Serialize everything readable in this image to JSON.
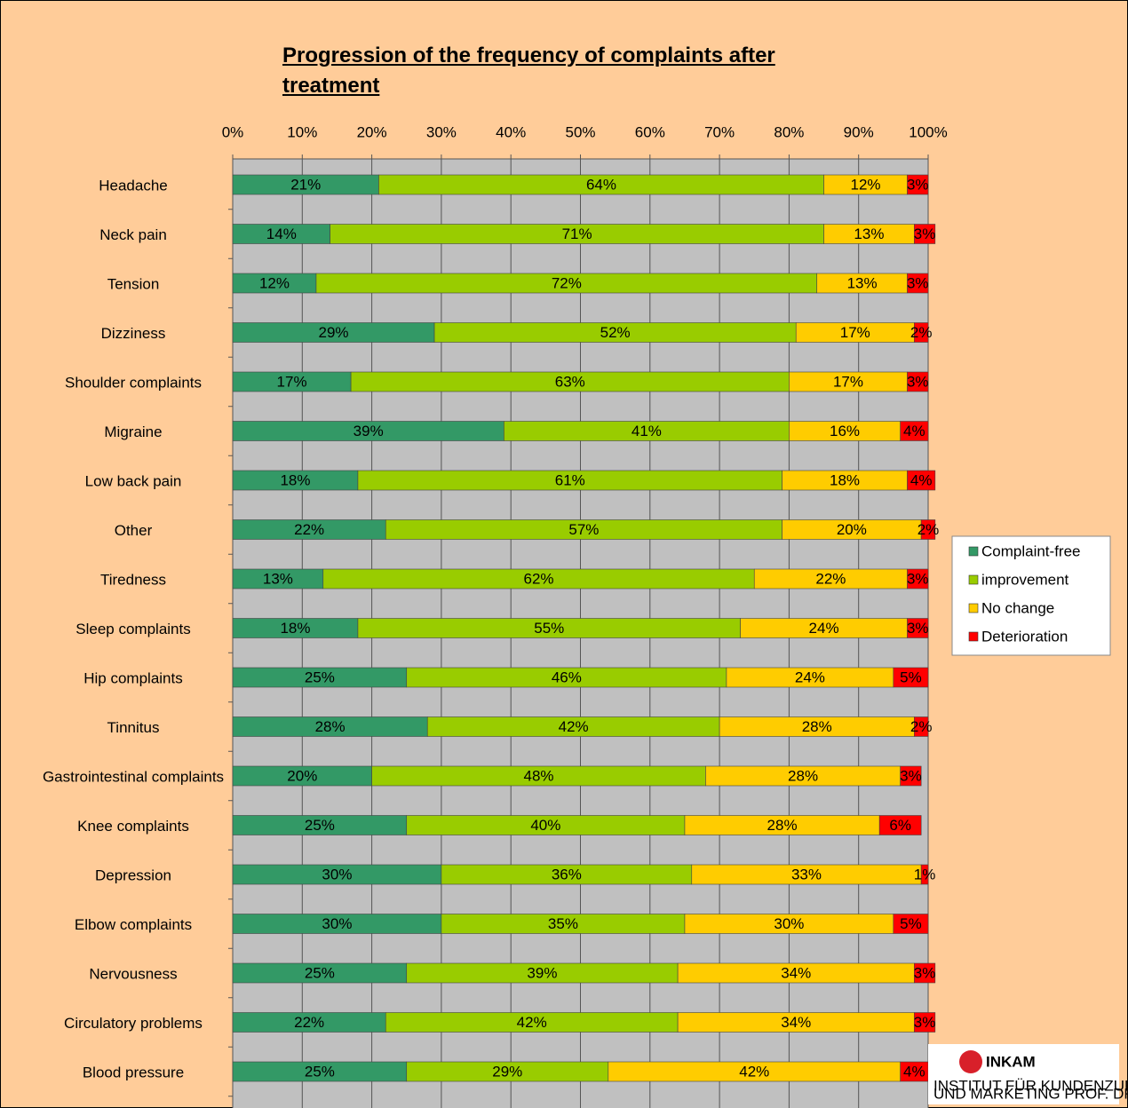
{
  "chart_data": {
    "type": "stacked_barh",
    "title": "Progression of the frequency of complaints after treatment",
    "categories": [
      "Headache",
      "Neck pain",
      "Tension",
      "Dizziness",
      "Shoulder complaints",
      "Migraine",
      "Low back pain",
      "Other",
      "Tiredness",
      "Sleep complaints",
      "Hip complaints",
      "Tinnitus",
      "Gastrointestinal complaints",
      "Knee complaints",
      "Depression",
      "Elbow complaints",
      "Nervousness",
      "Circulatory problems",
      "Blood pressure"
    ],
    "series": [
      {
        "name": "Complaint-free",
        "color": "#339966",
        "values": [
          21,
          14,
          12,
          29,
          17,
          39,
          18,
          22,
          13,
          18,
          25,
          28,
          20,
          25,
          30,
          30,
          25,
          22,
          25
        ],
        "value_labels": [
          "21%",
          "14%",
          "12%",
          "29%",
          "17%",
          "39%",
          "18%",
          "22%",
          "13%",
          "18%",
          "25%",
          "28%",
          "20%",
          "25%",
          "30%",
          "30%",
          "25%",
          "22%",
          "25%"
        ]
      },
      {
        "name": "improvement",
        "color": "#99cc00",
        "values": [
          64,
          71,
          72,
          52,
          63,
          41,
          61,
          57,
          62,
          55,
          46,
          42,
          48,
          40,
          36,
          35,
          39,
          42,
          29
        ],
        "value_labels": [
          "64%",
          "71%",
          "72%",
          "52%",
          "63%",
          "41%",
          "61%",
          "57%",
          "62%",
          "55%",
          "46%",
          "42%",
          "48%",
          "40%",
          "36%",
          "35%",
          "39%",
          "42%",
          "29%"
        ]
      },
      {
        "name": "No change",
        "color": "#ffcc00",
        "values": [
          12,
          13,
          13,
          17,
          17,
          16,
          18,
          20,
          22,
          24,
          24,
          28,
          28,
          28,
          33,
          30,
          34,
          34,
          42
        ],
        "value_labels": [
          "12%",
          "13%",
          "13%",
          "17%",
          "17%",
          "16%",
          "18%",
          "20%",
          "22%",
          "24%",
          "24%",
          "28%",
          "28%",
          "28%",
          "33%",
          "30%",
          "34%",
          "34%",
          "42%"
        ]
      },
      {
        "name": "Deterioration",
        "color": "#ff0000",
        "values": [
          3,
          3,
          3,
          2,
          3,
          4,
          4,
          2,
          3,
          3,
          5,
          2,
          3,
          6,
          1,
          5,
          3,
          3,
          4
        ],
        "value_labels": [
          "3%",
          "3%",
          "3%",
          "2%",
          "3%",
          "4%",
          "4%",
          "2%",
          "3%",
          "3%",
          "5%",
          "2%",
          "3%",
          "6%",
          "1%",
          "5%",
          "3%",
          "3%",
          "4%"
        ]
      }
    ],
    "xlim": [
      0,
      100
    ],
    "xticks": [
      {
        "value": 0,
        "label": "0%"
      },
      {
        "value": 10,
        "label": "10%"
      },
      {
        "value": 20,
        "label": "20%"
      },
      {
        "value": 30,
        "label": "30%"
      },
      {
        "value": 40,
        "label": "40%"
      },
      {
        "value": 50,
        "label": "50%"
      },
      {
        "value": 60,
        "label": "60%"
      },
      {
        "value": 70,
        "label": "70%"
      },
      {
        "value": 80,
        "label": "80%"
      },
      {
        "value": 90,
        "label": "90%"
      },
      {
        "value": 100,
        "label": "100%"
      }
    ],
    "grid": true,
    "legend": "right"
  },
  "logo": {
    "name": "INKAM",
    "lines": [
      "INSTITUT FÜR KUNDENZUFRIEDENHEITS-ANALYSEN",
      "UND MARKETING PROF. DR. THEIS GMBH"
    ]
  }
}
